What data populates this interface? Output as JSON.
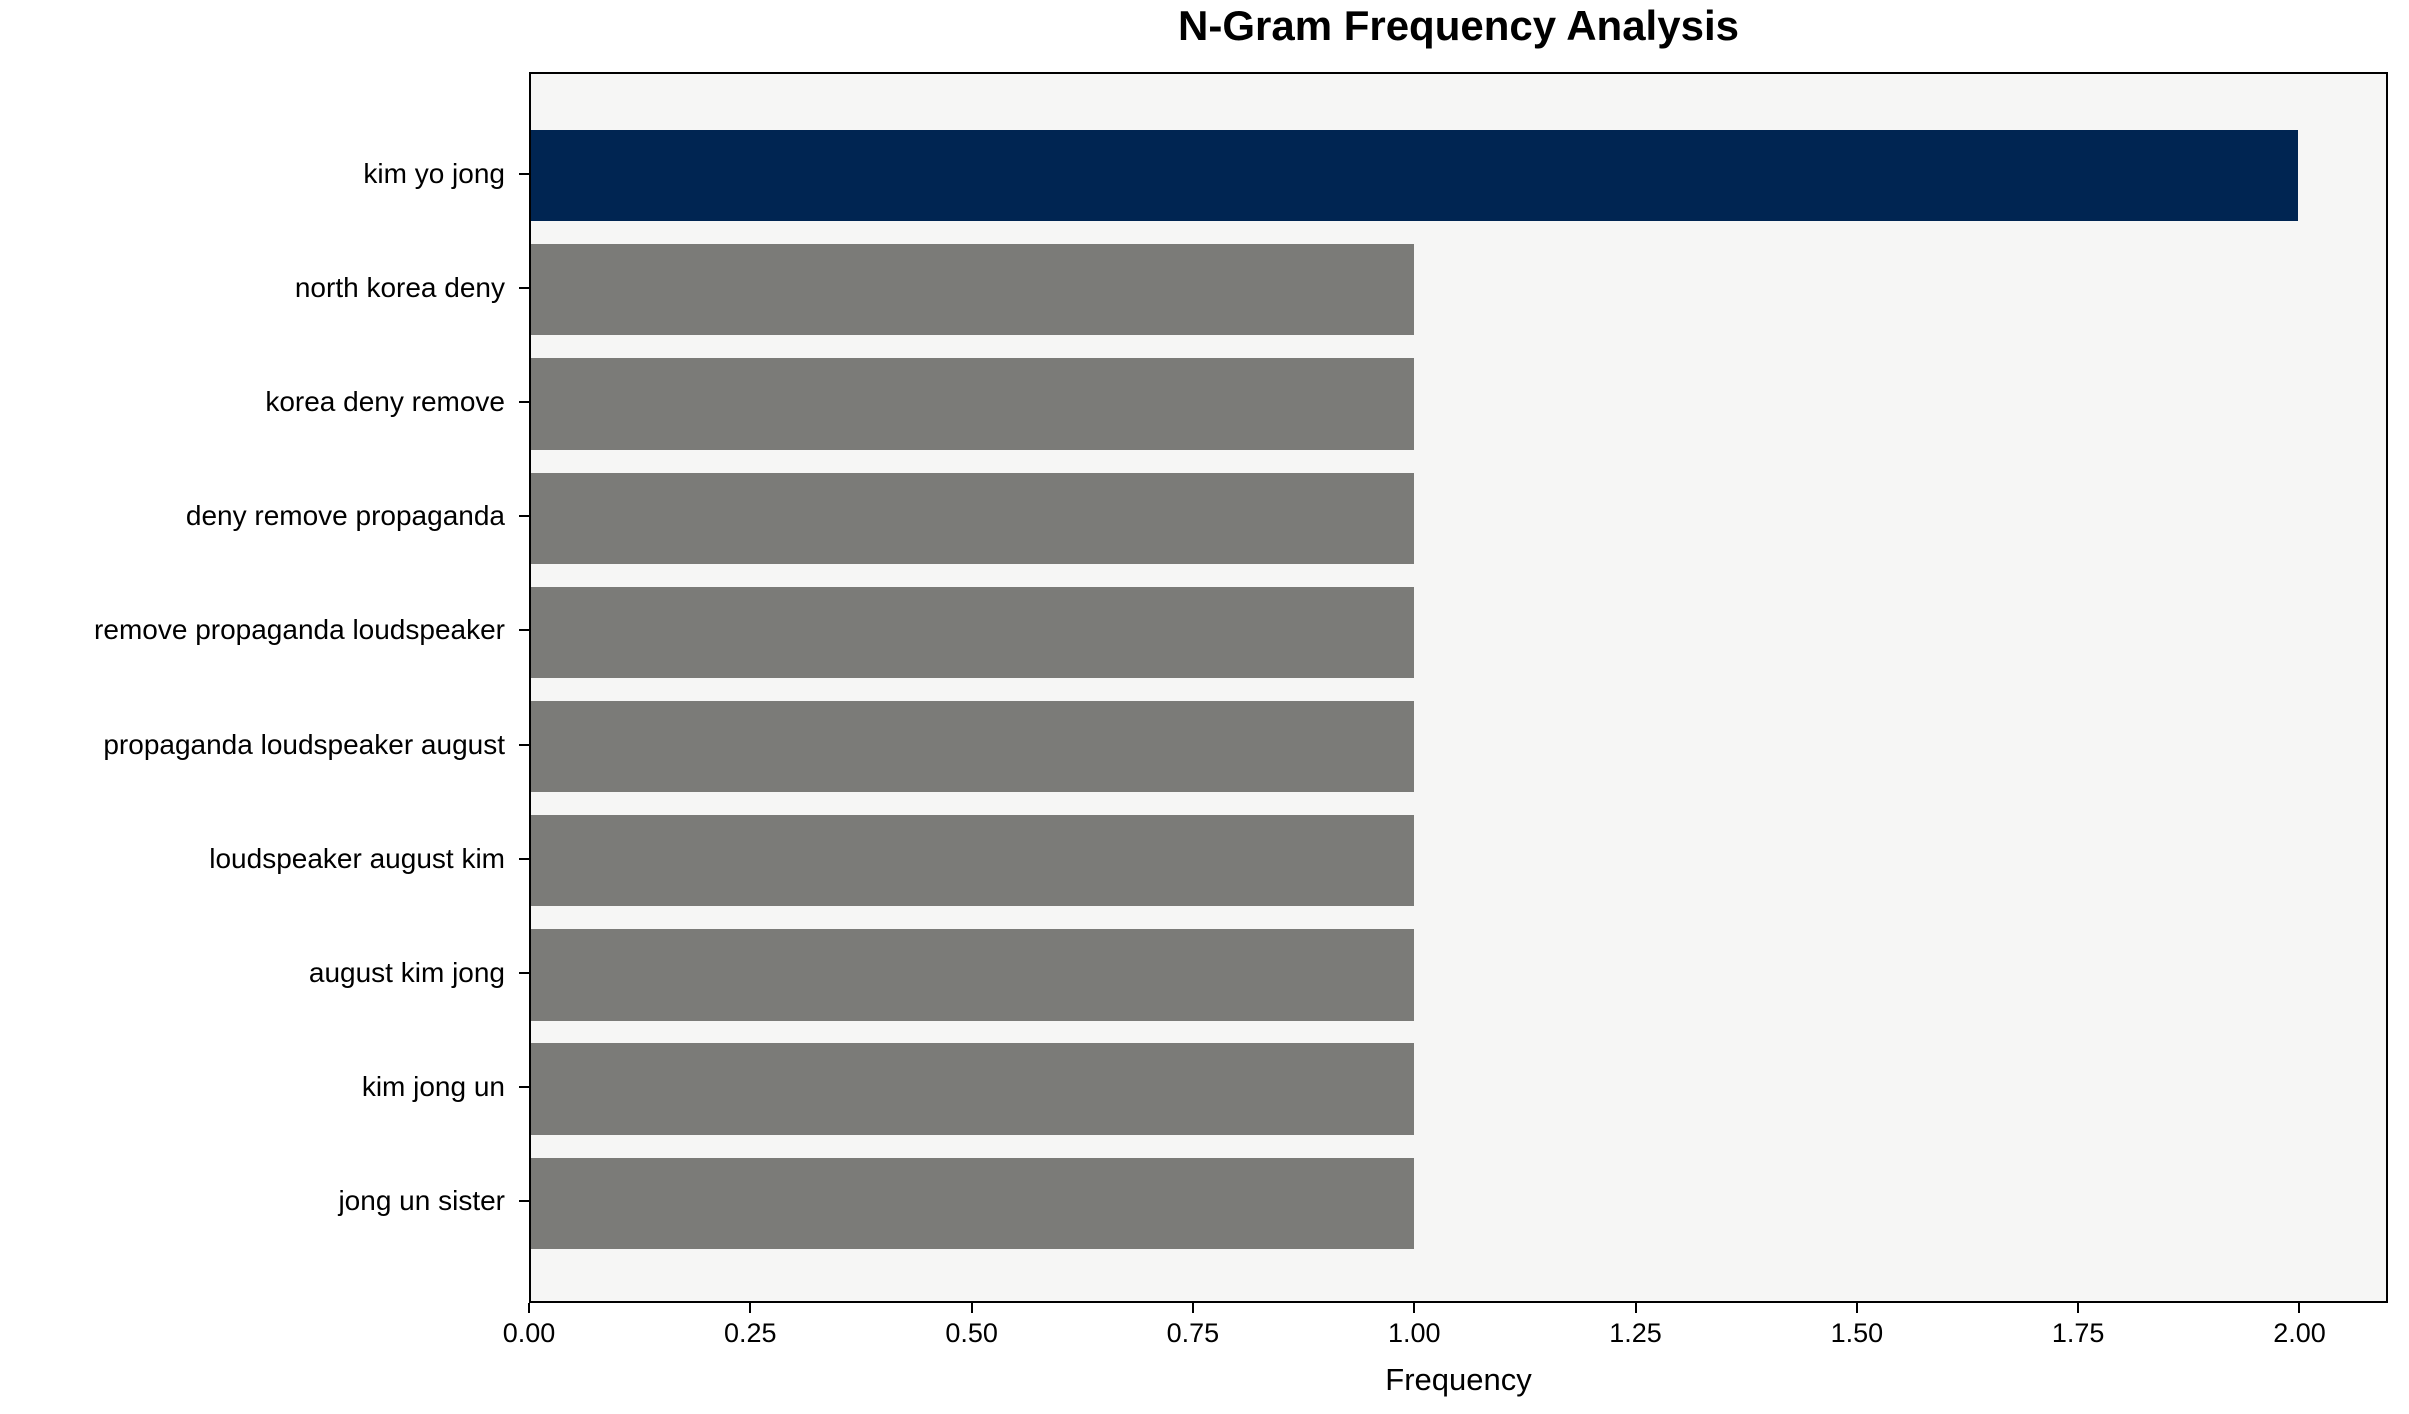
{
  "chart_data": {
    "type": "bar",
    "orientation": "horizontal",
    "title": "N-Gram Frequency Analysis",
    "xlabel": "Frequency",
    "ylabel": "",
    "categories": [
      "kim yo jong",
      "north korea deny",
      "korea deny remove",
      "deny remove propaganda",
      "remove propaganda loudspeaker",
      "propaganda loudspeaker august",
      "loudspeaker august kim",
      "august kim jong",
      "kim jong un",
      "jong un sister"
    ],
    "values": [
      2,
      1,
      1,
      1,
      1,
      1,
      1,
      1,
      1,
      1
    ],
    "bar_colors": [
      "#002552",
      "#7b7b78",
      "#7b7b78",
      "#7b7b78",
      "#7b7b78",
      "#7b7b78",
      "#7b7b78",
      "#7b7b78",
      "#7b7b78",
      "#7b7b78"
    ],
    "highlight_color": "#002552",
    "default_bar_color": "#7b7b78",
    "plot_background_color": "#f6f6f5",
    "figure_background_color": "#ffffff",
    "xlim": [
      0,
      2.1
    ],
    "xticks": [
      "0.00",
      "0.25",
      "0.50",
      "0.75",
      "1.00",
      "1.25",
      "1.50",
      "1.75",
      "2.00"
    ],
    "grid": false
  }
}
